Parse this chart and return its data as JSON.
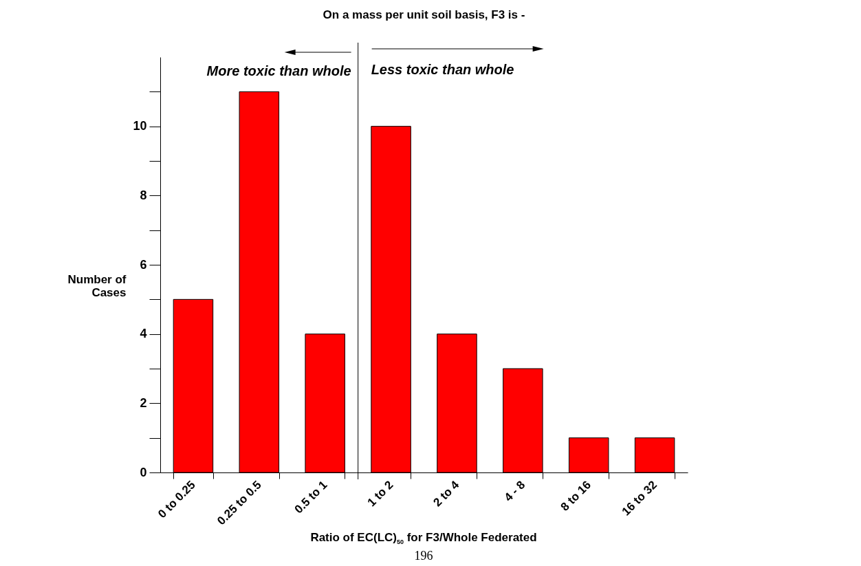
{
  "chart_data": {
    "type": "bar",
    "title": "On a mass per unit soil basis, F3 is -",
    "xlabel": "Ratio of EC(LC)$_{50}$ for F3/Whole Federated",
    "ylabel": "Number of Cases",
    "categories": [
      "0 to 0.25",
      "0.25 to 0.5",
      "0.5 to 1",
      "1 to 2",
      "2 to 4",
      "4 - 8",
      "8 to 16",
      "16 to 32"
    ],
    "values": [
      5,
      11,
      4,
      10,
      4,
      3,
      1,
      1
    ],
    "color": "#ff0000",
    "ylim": [
      0,
      12
    ],
    "yticks": [
      0,
      {
        "value": 1,
        "label": null
      },
      2,
      {
        "value": 3,
        "label": null
      },
      4,
      {
        "value": 5,
        "label": null
      },
      6,
      {
        "value": 7,
        "label": null
      },
      8,
      {
        "value": 9,
        "label": null
      },
      10,
      {
        "value": 11,
        "label": null
      }
    ],
    "annotations": [
      "More toxic than whole",
      "Less toxic than whole",
      "196"
    ]
  }
}
